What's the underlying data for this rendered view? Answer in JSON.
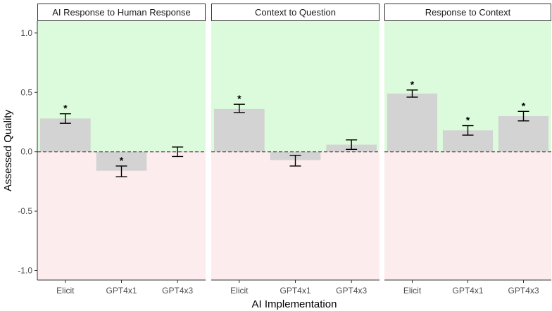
{
  "chart_data": {
    "type": "bar",
    "xlabel": "AI Implementation",
    "ylabel": "Assessed Quality",
    "ylim": [
      -1.08,
      1.1
    ],
    "yticks": [
      1.0,
      0.5,
      0.0,
      -0.5,
      -1.0
    ],
    "ytick_labels": [
      "1.0",
      "0.5",
      "0.0",
      "-0.5",
      "-1.0"
    ],
    "categories": [
      "Elicit",
      "GPT4x1",
      "GPT4x3"
    ],
    "reference_line": 0,
    "colors": {
      "positive_region": "#dcfadc",
      "negative_region": "#fdecee",
      "bar": "#d3d3d3",
      "strip_bg": "#ffffff",
      "frame": "#333333"
    },
    "panels": [
      {
        "title": "AI Response to Human Response",
        "values": [
          0.28,
          -0.16,
          0.0
        ],
        "err_low": [
          0.24,
          -0.21,
          -0.04
        ],
        "err_high": [
          0.32,
          -0.12,
          0.04
        ],
        "significant": [
          true,
          true,
          false
        ],
        "star": "*"
      },
      {
        "title": "Context to Question",
        "values": [
          0.36,
          -0.07,
          0.06
        ],
        "err_low": [
          0.33,
          -0.12,
          0.02
        ],
        "err_high": [
          0.4,
          -0.03,
          0.1
        ],
        "significant": [
          true,
          false,
          false
        ],
        "star": "*"
      },
      {
        "title": "Response to Context",
        "values": [
          0.49,
          0.18,
          0.3
        ],
        "err_low": [
          0.46,
          0.14,
          0.26
        ],
        "err_high": [
          0.52,
          0.22,
          0.34
        ],
        "significant": [
          true,
          true,
          true
        ],
        "star": "*"
      }
    ]
  }
}
